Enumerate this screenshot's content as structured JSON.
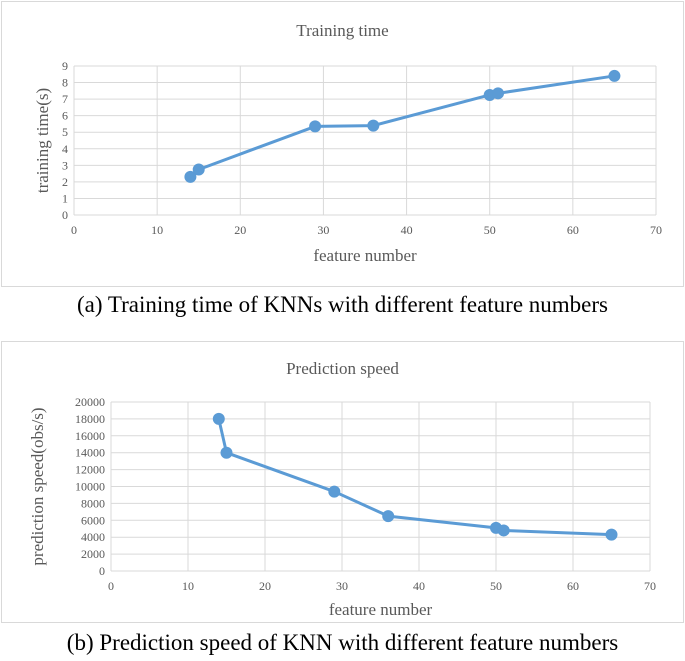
{
  "chart_data": [
    {
      "type": "line",
      "title": "Training time",
      "xlabel": "feature number",
      "ylabel": "training time(s)",
      "xlim": [
        0,
        70
      ],
      "ylim": [
        0,
        9
      ],
      "xticks": [
        0,
        10,
        20,
        30,
        40,
        50,
        60,
        70
      ],
      "yticks": [
        0,
        1,
        2,
        3,
        4,
        5,
        6,
        7,
        8,
        9
      ],
      "grid": true,
      "series": [
        {
          "x": [
            14,
            15,
            29,
            36,
            50,
            51,
            65
          ],
          "y": [
            2.3,
            2.75,
            5.35,
            5.4,
            7.25,
            7.35,
            8.4
          ]
        }
      ],
      "caption": "(a)  Training time of KNNs with different feature numbers"
    },
    {
      "type": "line",
      "title": "Prediction speed",
      "xlabel": "feature number",
      "ylabel": "prediction speed(obs/s)",
      "xlim": [
        0,
        70
      ],
      "ylim": [
        0,
        20000
      ],
      "xticks": [
        0,
        10,
        20,
        30,
        40,
        50,
        60,
        70
      ],
      "yticks": [
        0,
        2000,
        4000,
        6000,
        8000,
        10000,
        12000,
        14000,
        16000,
        18000,
        20000
      ],
      "grid": true,
      "series": [
        {
          "x": [
            14,
            15,
            29,
            36,
            50,
            51,
            65
          ],
          "y": [
            18000,
            14000,
            9400,
            6500,
            5100,
            4800,
            4300
          ]
        }
      ],
      "caption": "(b) Prediction speed of KNN with different feature numbers"
    }
  ],
  "colors": {
    "series": "#5b9bd5",
    "grid": "#d9d9d9",
    "text": "#595959"
  }
}
